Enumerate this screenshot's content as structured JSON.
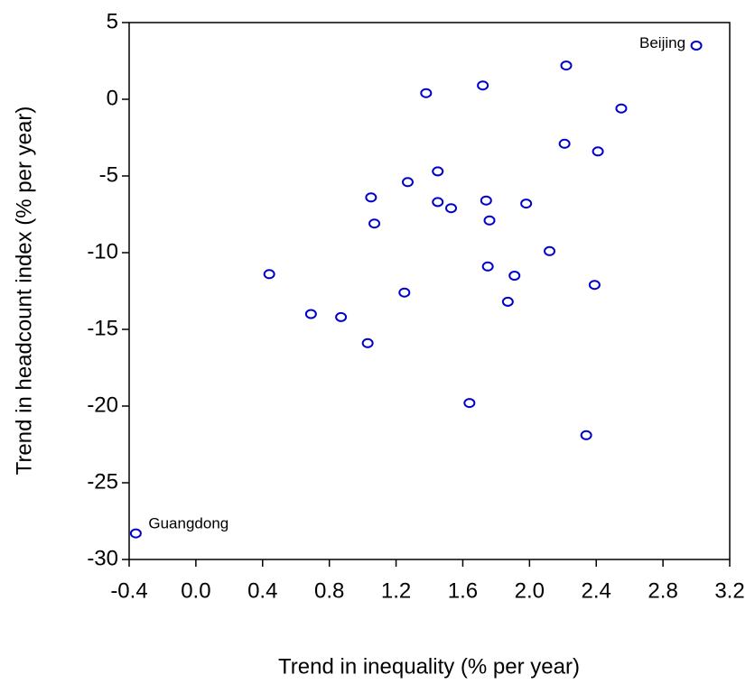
{
  "chart_data": {
    "type": "scatter",
    "x_label": "Trend in inequality (% per year)",
    "y_label": "Trend in headcount index (% per year)",
    "color": "#0000cc",
    "x": [
      3.0,
      2.22,
      1.38,
      1.72,
      2.55,
      2.21,
      2.41,
      1.45,
      1.27,
      1.05,
      1.45,
      1.53,
      1.74,
      1.98,
      1.07,
      1.76,
      2.12,
      0.44,
      1.75,
      1.91,
      2.39,
      1.25,
      1.87,
      0.69,
      0.87,
      1.03,
      1.64,
      2.34,
      -0.36
    ],
    "y": [
      3.5,
      2.2,
      0.4,
      0.9,
      -0.6,
      -2.9,
      -3.4,
      -4.7,
      -5.4,
      -6.4,
      -6.7,
      -7.1,
      -6.6,
      -6.8,
      -8.1,
      -7.9,
      -9.9,
      -11.4,
      -10.9,
      -11.5,
      -12.1,
      -12.6,
      -13.2,
      -14.0,
      -14.2,
      -15.9,
      -19.8,
      -21.9,
      -28.3
    ],
    "annotations": [
      {
        "text": "Beijing",
        "x": 3.0,
        "y": 3.5
      },
      {
        "text": "Guangdong",
        "x": -0.36,
        "y": -28.3
      }
    ],
    "xlim": [
      -0.4,
      3.2
    ],
    "ylim": [
      -30,
      5
    ],
    "xticks": [
      -0.4,
      {
        "value": 0,
        "label": "0.0"
      },
      0.4,
      0.8,
      1.2,
      1.6,
      {
        "value": 2,
        "label": "2.0"
      },
      2.4,
      2.8,
      3.2
    ],
    "yticks": [
      -30,
      -25,
      -20,
      -15,
      -10,
      -5,
      0,
      5
    ]
  }
}
